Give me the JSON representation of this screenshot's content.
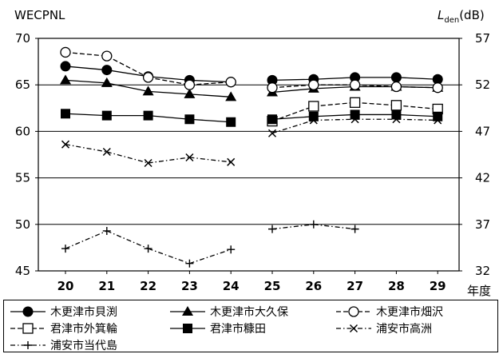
{
  "chart_data": {
    "type": "line",
    "y_left_label": "WECPNL",
    "y_right_label_main": "L",
    "y_right_label_sub": "den",
    "y_right_label_unit": "(dB)",
    "x_suffix": "年度",
    "x": [
      20,
      21,
      22,
      23,
      24,
      25,
      26,
      27,
      28,
      29
    ],
    "x_tick_labels": [
      "20",
      "21",
      "22",
      "23",
      "24",
      "25",
      "26",
      "27",
      "28",
      "29"
    ],
    "ylim": [
      45,
      70
    ],
    "y_ticks": [
      45,
      50,
      55,
      60,
      65,
      70
    ],
    "y_right_ticks": [
      "32",
      "37",
      "42",
      "47",
      "52",
      "57"
    ],
    "grid": true,
    "series": [
      {
        "name": "木更津市貝渕",
        "marker": "filled-circle",
        "line": "solid",
        "values": [
          [
            20,
            67.0
          ],
          [
            21,
            66.6
          ],
          [
            22,
            65.9
          ],
          [
            23,
            65.5
          ],
          [
            24,
            65.3
          ],
          [
            25,
            65.5
          ],
          [
            26,
            65.6
          ],
          [
            27,
            65.8
          ],
          [
            28,
            65.8
          ],
          [
            29,
            65.6
          ]
        ]
      },
      {
        "name": "木更津市大久保",
        "marker": "filled-triangle",
        "line": "solid",
        "values": [
          [
            20,
            65.5
          ],
          [
            21,
            65.2
          ],
          [
            22,
            64.3
          ],
          [
            23,
            64.0
          ],
          [
            24,
            63.7
          ],
          [
            25,
            64.2
          ],
          [
            26,
            64.6
          ],
          [
            27,
            64.8
          ],
          [
            28,
            64.8
          ],
          [
            29,
            64.7
          ]
        ]
      },
      {
        "name": "木更津市畑沢",
        "marker": "open-circle",
        "line": "dashed",
        "values": [
          [
            20,
            68.5
          ],
          [
            21,
            68.1
          ],
          [
            22,
            65.8
          ],
          [
            23,
            65.0
          ],
          [
            24,
            65.3
          ],
          [
            25,
            64.7
          ],
          [
            26,
            65.0
          ],
          [
            27,
            65.0
          ],
          [
            28,
            64.8
          ],
          [
            29,
            64.7
          ]
        ]
      },
      {
        "name": "君津市外箕輪",
        "marker": "open-square",
        "line": "dashed",
        "values": [
          [
            25,
            61.1
          ],
          [
            26,
            62.7
          ],
          [
            27,
            63.1
          ],
          [
            28,
            62.8
          ],
          [
            29,
            62.4
          ]
        ]
      },
      {
        "name": "君津市糠田",
        "marker": "filled-square",
        "line": "solid",
        "values": [
          [
            20,
            61.9
          ],
          [
            21,
            61.7
          ],
          [
            22,
            61.7
          ],
          [
            23,
            61.3
          ],
          [
            24,
            61.0
          ],
          [
            25,
            61.3
          ],
          [
            26,
            61.6
          ],
          [
            27,
            61.8
          ],
          [
            28,
            61.8
          ],
          [
            29,
            61.6
          ]
        ]
      },
      {
        "name": "浦安市高洲",
        "marker": "x",
        "line": "dashdot",
        "values": [
          [
            20,
            58.6
          ],
          [
            21,
            57.8
          ],
          [
            22,
            56.6
          ],
          [
            23,
            57.2
          ],
          [
            24,
            56.7
          ],
          [
            25,
            59.8
          ],
          [
            26,
            61.2
          ],
          [
            27,
            61.3
          ],
          [
            28,
            61.3
          ],
          [
            29,
            61.2
          ]
        ]
      },
      {
        "name": "浦安市当代島",
        "marker": "plus",
        "line": "dashdot",
        "values": [
          [
            20,
            47.4
          ],
          [
            21,
            49.3
          ],
          [
            22,
            47.4
          ],
          [
            23,
            45.8
          ],
          [
            24,
            47.3
          ],
          [
            25,
            49.5
          ],
          [
            26,
            50.0
          ],
          [
            27,
            49.5
          ]
        ]
      }
    ]
  },
  "colors": {
    "line": "#000000",
    "grid": "#000000",
    "background": "#ffffff"
  }
}
